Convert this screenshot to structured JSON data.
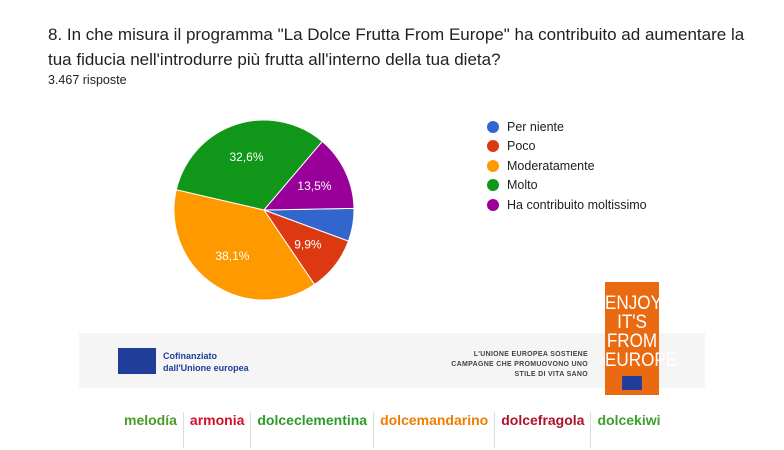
{
  "question": "8. In che misura il programma \"La Dolce Frutta From Europe\" ha contribuito ad aumentare la tua fiducia nell'introdurre più frutta all'interno della tua dieta?",
  "responses": "3.467 risposte",
  "chart_data": {
    "type": "pie",
    "categories": [
      "Per niente",
      "Poco",
      "Moderatamente",
      "Molto",
      "Ha contribuito moltissimo"
    ],
    "values": [
      5.9,
      9.9,
      38.1,
      32.6,
      13.5
    ],
    "labels": [
      "",
      "9,9%",
      "38,1%",
      "32,6%",
      "13,5%"
    ],
    "colors": [
      "#3366cc",
      "#dc3912",
      "#ff9900",
      "#109618",
      "#990099"
    ],
    "legend": "right"
  },
  "footer": {
    "cofinanziato": "Cofinanziato dall'Unione europea",
    "ue_text": "L'UNIONE EUROPEA SOSTIENE CAMPAGNE CHE PROMUOVONO UNO STILE DI VITA SANO",
    "enjoy": "ENJOY IT'S FROM EUROPE",
    "brands": [
      {
        "name": "melodía",
        "color": "#4a9a2a"
      },
      {
        "name": "armonia",
        "color": "#d2102a"
      },
      {
        "name": "dolceclementina",
        "color": "#2e9a2a"
      },
      {
        "name": "dolcemandarino",
        "color": "#ef7d00"
      },
      {
        "name": "dolcefragola",
        "color": "#b0122a"
      },
      {
        "name": "dolcekiwi",
        "color": "#3aa02a"
      }
    ]
  }
}
